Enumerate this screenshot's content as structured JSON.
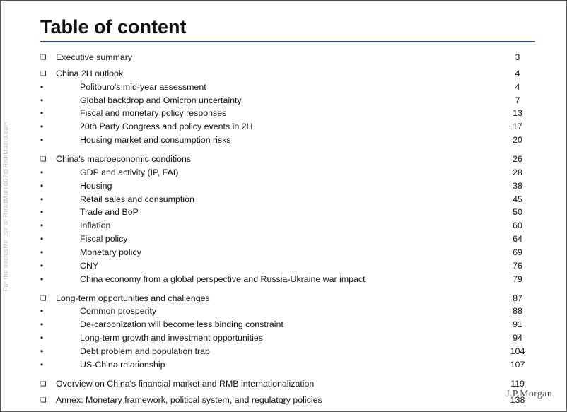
{
  "title": "Table of content",
  "brand": "J.P.Morgan",
  "page_num": "2",
  "watermark": "For the exclusive use of ReadMore007@RiskMacro.com",
  "sections": [
    {
      "label": "Executive summary",
      "page": "3",
      "items": []
    },
    {
      "label": "China 2H outlook",
      "page": "4",
      "items": [
        {
          "label": "Politburo's mid-year assessment",
          "page": "4"
        },
        {
          "label": "Global backdrop and Omicron uncertainty",
          "page": "7"
        },
        {
          "label": "Fiscal and monetary policy responses",
          "page": "13"
        },
        {
          "label": "20th Party Congress and policy events in 2H",
          "page": "17"
        },
        {
          "label": "Housing market and consumption risks",
          "page": "20"
        }
      ]
    },
    {
      "label": "China's macroeconomic conditions",
      "page": "26",
      "items": [
        {
          "label": "GDP and activity (IP, FAI)",
          "page": "28"
        },
        {
          "label": "Housing",
          "page": "38"
        },
        {
          "label": "Retail sales and consumption",
          "page": "45"
        },
        {
          "label": "Trade and BoP",
          "page": "50"
        },
        {
          "label": "Inflation",
          "page": "60"
        },
        {
          "label": "Fiscal policy",
          "page": "64"
        },
        {
          "label": "Monetary policy",
          "page": "69"
        },
        {
          "label": "CNY",
          "page": "76"
        },
        {
          "label": "China economy from a global perspective and Russia-Ukraine war impact",
          "page": "79"
        }
      ]
    },
    {
      "label": "Long-term opportunities and challenges",
      "page": "87",
      "items": [
        {
          "label": "Common prosperity",
          "page": "88"
        },
        {
          "label": "De-carbonization will become less binding constraint",
          "page": "91"
        },
        {
          "label": "Long-term growth and investment opportunities",
          "page": "94"
        },
        {
          "label": "Debt problem and population trap",
          "page": "104"
        },
        {
          "label": "US-China relationship",
          "page": "107"
        }
      ]
    },
    {
      "label": "Overview on China's financial market and RMB internationalization",
      "page": "119",
      "items": []
    },
    {
      "label": "Annex: Monetary framework, political system, and regulatory policies",
      "page": "138",
      "items": []
    }
  ]
}
